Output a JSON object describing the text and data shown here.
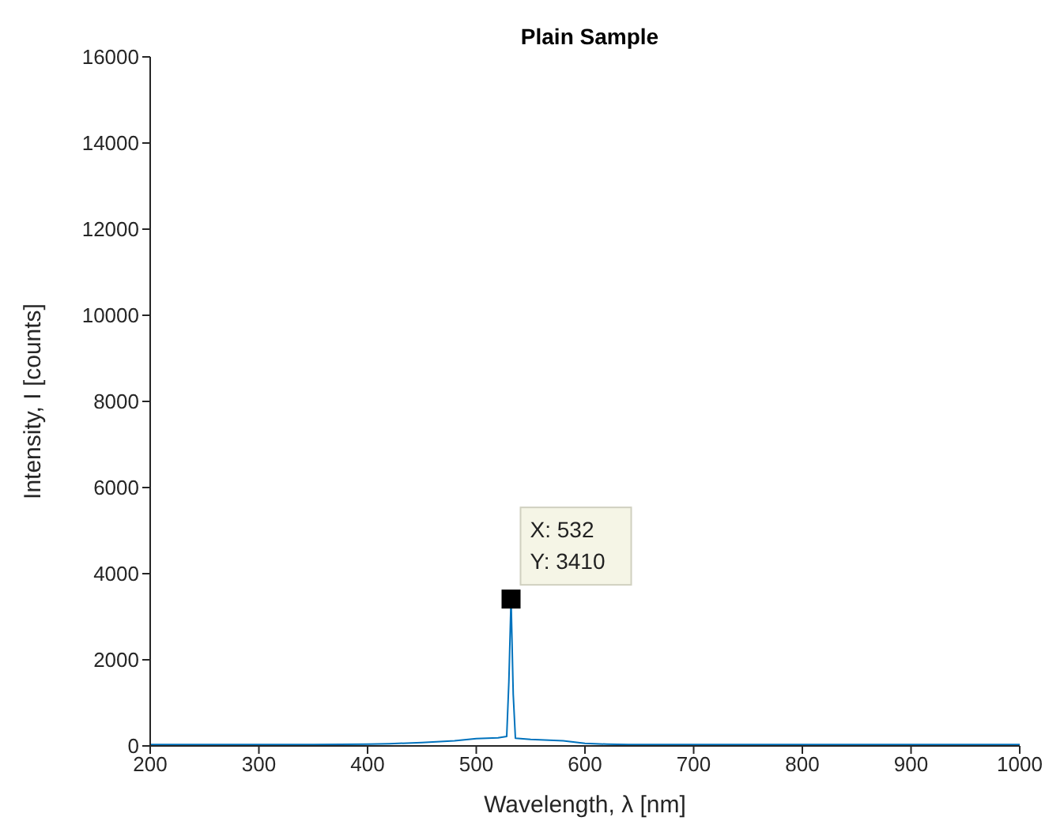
{
  "chart_data": {
    "type": "line",
    "title": "Plain Sample",
    "xlabel": "Wavelength, λ [nm]",
    "ylabel": "Intensity, I [counts]",
    "x": [
      200,
      300,
      350,
      400,
      420,
      450,
      480,
      500,
      520,
      528,
      530,
      532,
      534,
      536,
      550,
      580,
      600,
      620,
      640,
      660,
      800,
      1000
    ],
    "series": [
      {
        "color": "#0072bd",
        "values": [
          30,
          30,
          30,
          40,
          50,
          80,
          120,
          170,
          190,
          220,
          1500,
          3410,
          1200,
          180,
          150,
          120,
          60,
          40,
          30,
          30,
          30,
          30
        ]
      }
    ],
    "xlim": [
      200,
      1000
    ],
    "xticks": [
      200,
      300,
      400,
      500,
      600,
      700,
      800,
      900,
      1000
    ],
    "ylim": [
      0,
      16000
    ],
    "yticks": [
      0,
      2000,
      4000,
      6000,
      8000,
      10000,
      12000,
      14000,
      16000
    ],
    "grid": false,
    "legend": false,
    "marker": "none",
    "line_style": "solid",
    "annotations": [
      {
        "text": "X: 532\nY: 3410",
        "x": 532,
        "y": 3410
      }
    ]
  }
}
